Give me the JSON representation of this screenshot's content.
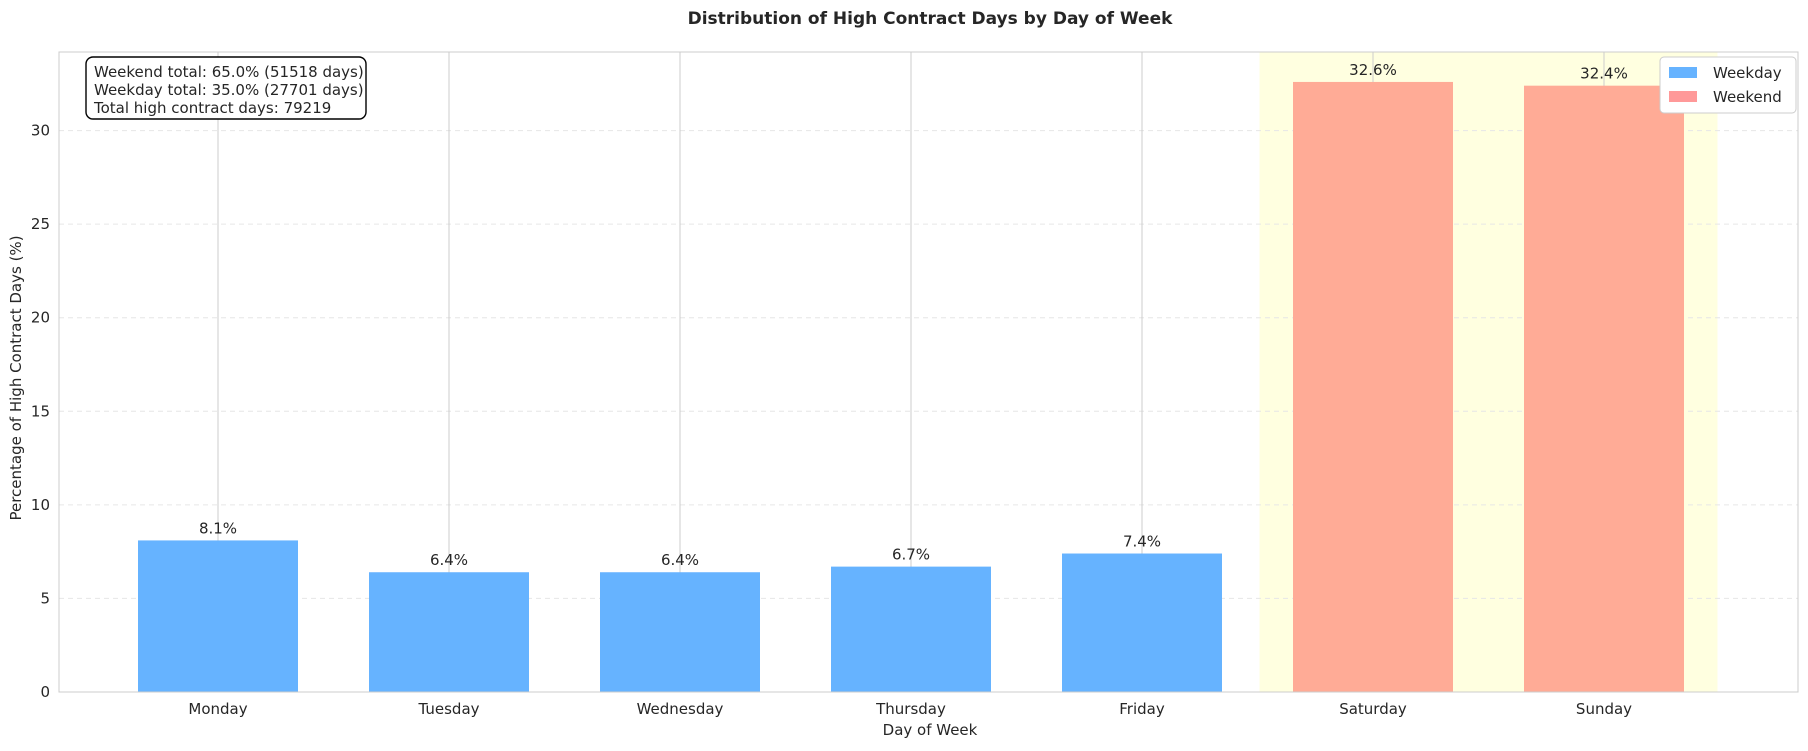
{
  "chart_data": {
    "type": "bar",
    "title": "Distribution of High Contract Days by Day of Week",
    "xlabel": "Day of Week",
    "ylabel": "Percentage of High Contract Days (%)",
    "categories": [
      "Monday",
      "Tuesday",
      "Wednesday",
      "Thursday",
      "Friday",
      "Saturday",
      "Sunday"
    ],
    "values": [
      8.1,
      6.4,
      6.4,
      6.7,
      7.4,
      32.6,
      32.4
    ],
    "value_labels": [
      "8.1%",
      "6.4%",
      "6.4%",
      "6.7%",
      "7.4%",
      "32.6%",
      "32.4%"
    ],
    "groups": [
      "Weekday",
      "Weekday",
      "Weekday",
      "Weekday",
      "Weekday",
      "Weekend",
      "Weekend"
    ],
    "ylim": [
      0,
      34.2
    ],
    "yticks": [
      0,
      5,
      10,
      15,
      20,
      25,
      30
    ],
    "ytick_labels": [
      "0",
      "5",
      "10",
      "15",
      "20",
      "25",
      "30"
    ],
    "grid": true,
    "legend": {
      "placement": "top-right",
      "entries": [
        {
          "name": "Weekday",
          "color": "#66b3ff"
        },
        {
          "name": "Weekend",
          "color": "#ff9999"
        }
      ]
    },
    "weekend_highlight_color": "#ffffe0",
    "weekend_bar_color": "#ffab96",
    "annotation_lines": [
      "Weekend total: 65.0% (51518 days)",
      "Weekday total: 35.0% (27701 days)",
      "Total high contract days: 79219"
    ],
    "annotation_placement": "top-left"
  }
}
